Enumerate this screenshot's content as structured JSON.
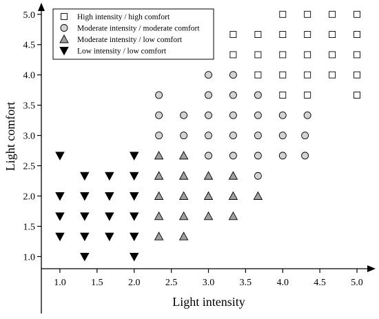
{
  "chart_data": {
    "type": "scatter",
    "title": "",
    "xlabel": "Light intensity",
    "ylabel": "Light comfort",
    "xlim": [
      0.75,
      5.25
    ],
    "ylim": [
      0.8,
      5.1
    ],
    "x_ticks": [
      "1.0",
      "1.5",
      "2.0",
      "2.5",
      "3.0",
      "3.5",
      "4.0",
      "4.5",
      "5.0"
    ],
    "y_ticks": [
      "1.0",
      "1.5",
      "2.0",
      "2.5",
      "3.0",
      "3.5",
      "4.0",
      "4.5",
      "5.0"
    ],
    "grid": false,
    "legend_position": "top-left",
    "series": [
      {
        "name": "High intensity / high comfort",
        "marker": "square",
        "color": "#ffffff",
        "points": [
          [
            4.0,
            5.0
          ],
          [
            4.333,
            5.0
          ],
          [
            4.667,
            5.0
          ],
          [
            5.0,
            5.0
          ],
          [
            3.333,
            4.667
          ],
          [
            3.667,
            4.667
          ],
          [
            4.0,
            4.667
          ],
          [
            4.333,
            4.667
          ],
          [
            4.667,
            4.667
          ],
          [
            5.0,
            4.667
          ],
          [
            3.333,
            4.333
          ],
          [
            3.667,
            4.333
          ],
          [
            4.0,
            4.333
          ],
          [
            4.333,
            4.333
          ],
          [
            4.667,
            4.333
          ],
          [
            5.0,
            4.333
          ],
          [
            3.667,
            4.0
          ],
          [
            4.0,
            4.0
          ],
          [
            4.333,
            4.0
          ],
          [
            4.667,
            4.0
          ],
          [
            5.0,
            4.0
          ],
          [
            4.0,
            3.667
          ],
          [
            4.333,
            3.667
          ],
          [
            5.0,
            3.667
          ]
        ]
      },
      {
        "name": "Moderate intensity / moderate comfort",
        "marker": "circle",
        "color": "#d3d3d3",
        "points": [
          [
            3.0,
            4.0
          ],
          [
            3.333,
            4.0
          ],
          [
            2.333,
            3.667
          ],
          [
            3.0,
            3.667
          ],
          [
            3.333,
            3.667
          ],
          [
            3.667,
            3.667
          ],
          [
            2.333,
            3.333
          ],
          [
            2.667,
            3.333
          ],
          [
            3.0,
            3.333
          ],
          [
            3.333,
            3.333
          ],
          [
            3.667,
            3.333
          ],
          [
            4.0,
            3.333
          ],
          [
            4.333,
            3.333
          ],
          [
            2.333,
            3.0
          ],
          [
            2.667,
            3.0
          ],
          [
            3.0,
            3.0
          ],
          [
            3.333,
            3.0
          ],
          [
            3.667,
            3.0
          ],
          [
            4.0,
            3.0
          ],
          [
            4.3,
            3.0
          ],
          [
            3.0,
            2.667
          ],
          [
            3.333,
            2.667
          ],
          [
            3.667,
            2.667
          ],
          [
            4.0,
            2.667
          ],
          [
            4.3,
            2.667
          ],
          [
            3.667,
            2.333
          ]
        ]
      },
      {
        "name": "Moderate intensity / low comfort",
        "marker": "triangle-up",
        "color": "#a0a0a0",
        "points": [
          [
            2.333,
            2.667
          ],
          [
            2.667,
            2.667
          ],
          [
            2.333,
            2.333
          ],
          [
            2.667,
            2.333
          ],
          [
            3.0,
            2.333
          ],
          [
            3.333,
            2.333
          ],
          [
            2.333,
            2.0
          ],
          [
            2.667,
            2.0
          ],
          [
            3.0,
            2.0
          ],
          [
            3.333,
            2.0
          ],
          [
            3.667,
            2.0
          ],
          [
            2.333,
            1.667
          ],
          [
            2.667,
            1.667
          ],
          [
            3.0,
            1.667
          ],
          [
            3.333,
            1.667
          ],
          [
            2.333,
            1.333
          ],
          [
            2.667,
            1.333
          ]
        ]
      },
      {
        "name": "Low intensity / low comfort",
        "marker": "triangle-down",
        "color": "#000000",
        "points": [
          [
            1.0,
            2.667
          ],
          [
            2.0,
            2.667
          ],
          [
            1.333,
            2.333
          ],
          [
            1.667,
            2.333
          ],
          [
            2.0,
            2.333
          ],
          [
            1.0,
            2.0
          ],
          [
            1.333,
            2.0
          ],
          [
            1.667,
            2.0
          ],
          [
            2.0,
            2.0
          ],
          [
            1.0,
            1.667
          ],
          [
            1.333,
            1.667
          ],
          [
            1.667,
            1.667
          ],
          [
            2.0,
            1.667
          ],
          [
            1.0,
            1.333
          ],
          [
            1.333,
            1.333
          ],
          [
            1.667,
            1.333
          ],
          [
            2.0,
            1.333
          ],
          [
            1.333,
            1.0
          ],
          [
            2.0,
            1.0
          ]
        ]
      }
    ]
  }
}
